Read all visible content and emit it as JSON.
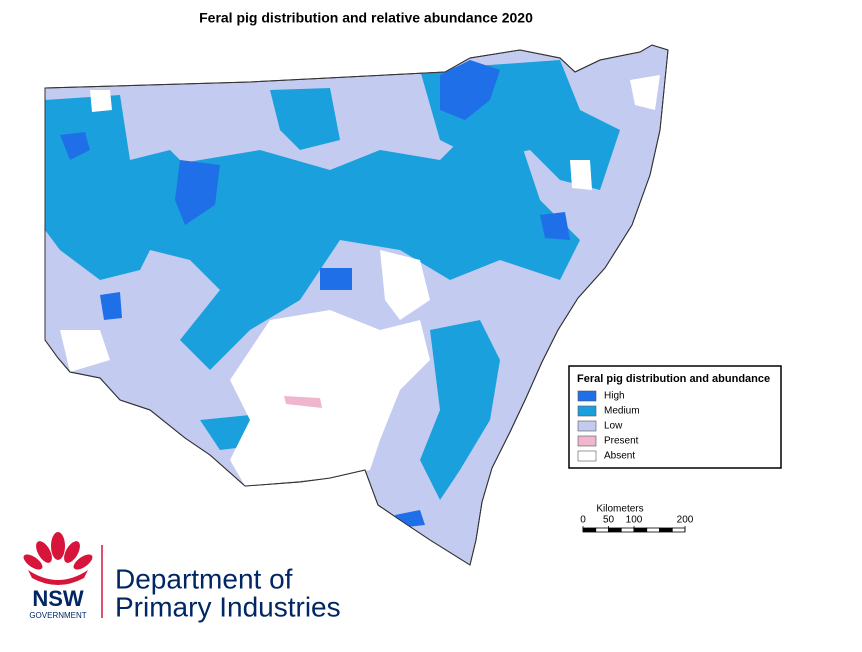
{
  "title": "Feral pig distribution and relative abundance 2020",
  "legend": {
    "title": "Feral pig distribution and abundance",
    "items": [
      {
        "label": "High",
        "color": "#1f6fe8"
      },
      {
        "label": "Medium",
        "color": "#1aa0dc"
      },
      {
        "label": "Low",
        "color": "#c3cbf0"
      },
      {
        "label": "Present",
        "color": "#f1b6cf"
      },
      {
        "label": "Absent",
        "color": "#ffffff"
      }
    ]
  },
  "scale": {
    "title": "Kilometers",
    "ticks": [
      0,
      50,
      100,
      200
    ]
  },
  "logo": {
    "mark": "NSW",
    "sub": "GOVERNMENT",
    "line1": "Department of",
    "line2": "Primary Industries"
  }
}
